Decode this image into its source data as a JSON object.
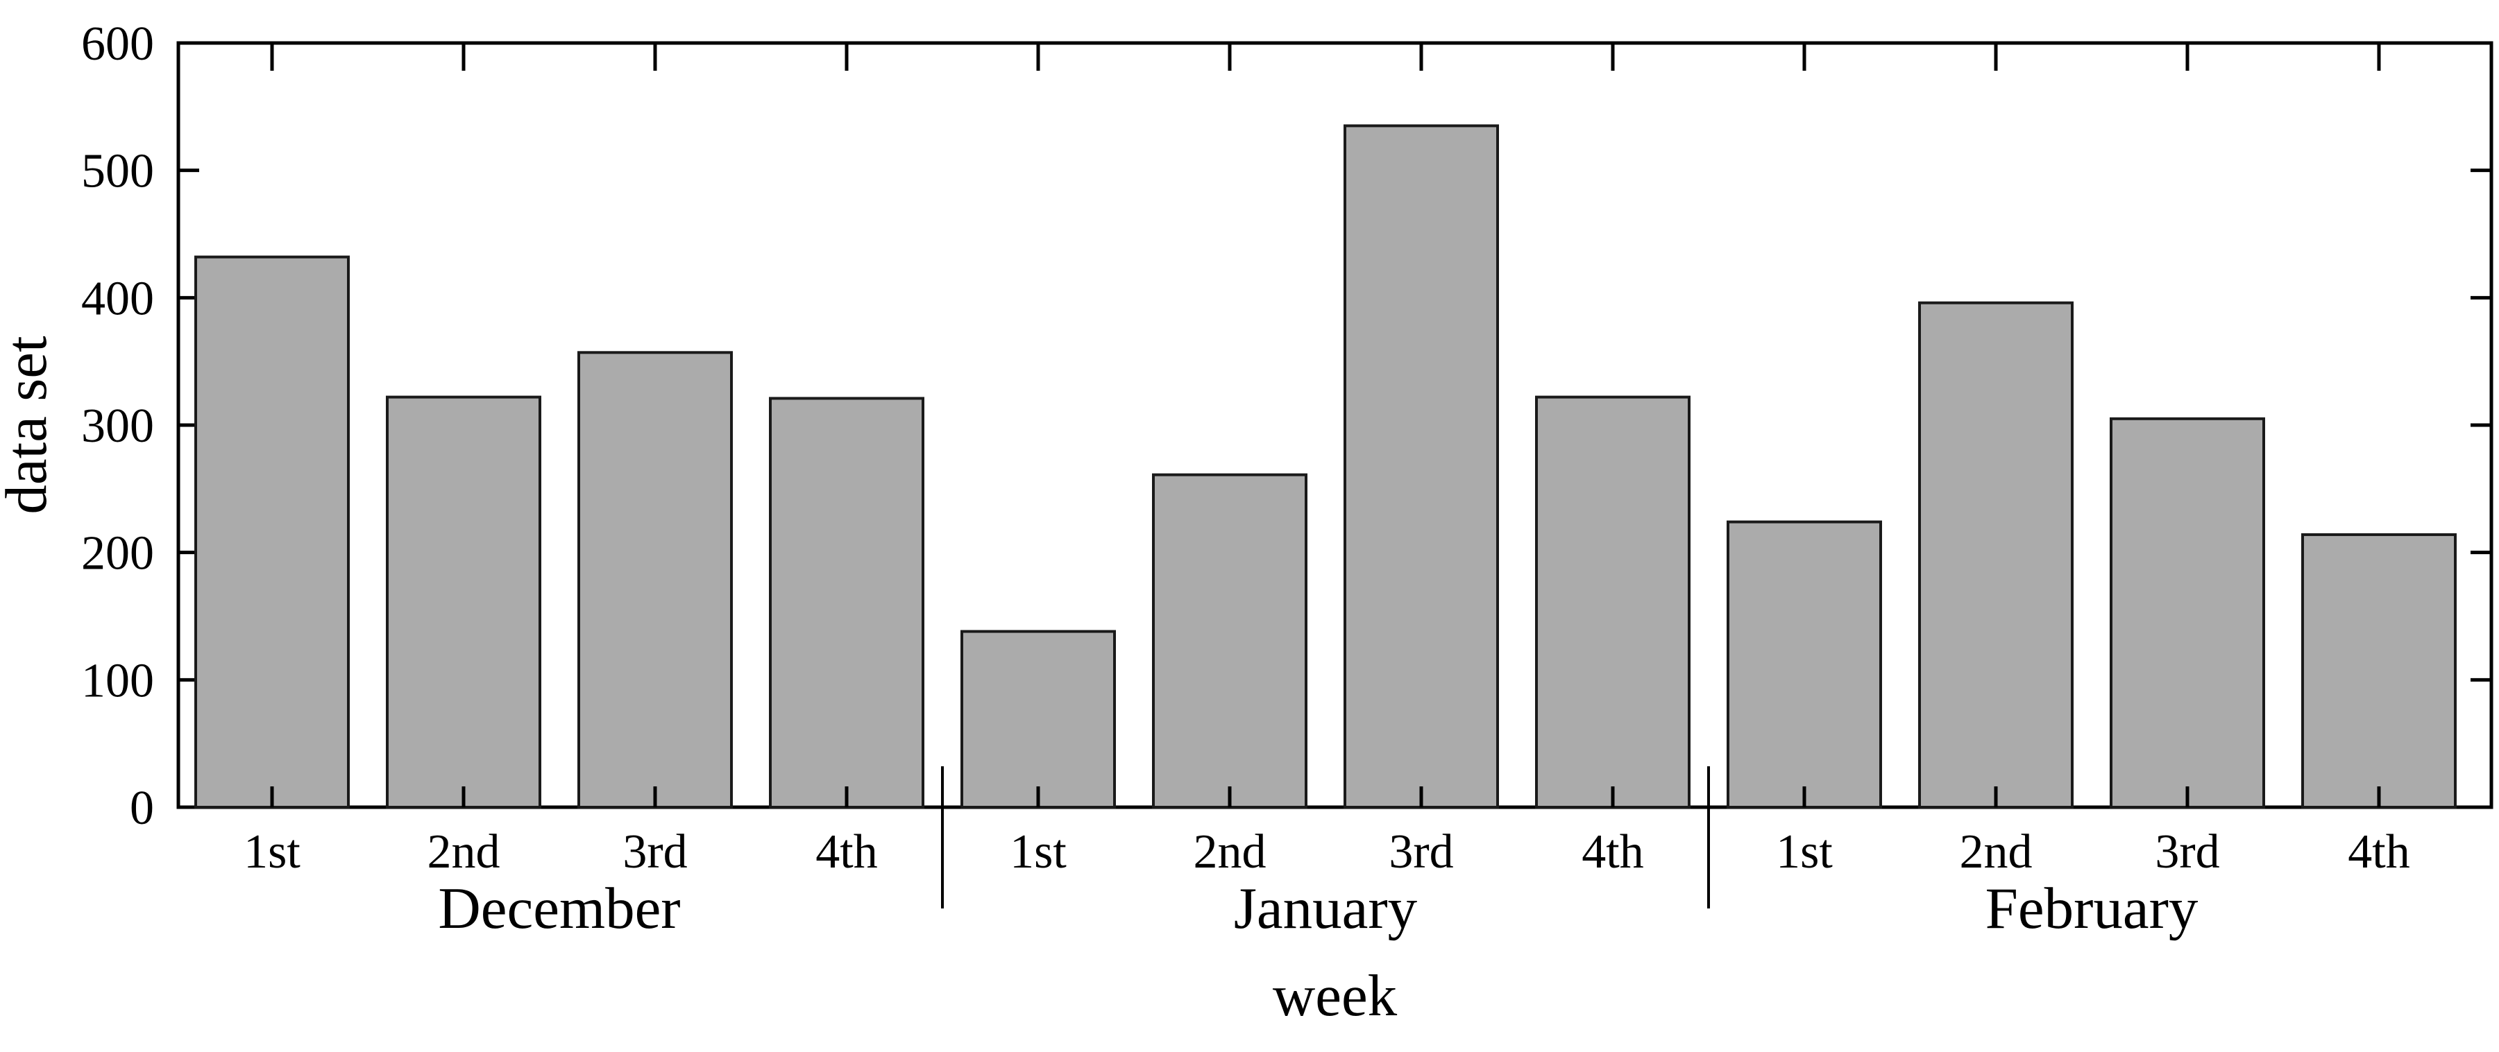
{
  "page": {
    "background": "#FFFFFF"
  },
  "chart_data": {
    "type": "bar",
    "title": "",
    "xlabel": "week",
    "ylabel": "data set",
    "ylim": [
      0,
      600
    ],
    "ytick_interval": 100,
    "ytick_labels": [
      "0",
      "100",
      "200",
      "300",
      "400",
      "500",
      "600"
    ],
    "grid": false,
    "legend": false,
    "background": "#FFFFFF",
    "bar_fill": "#ABABAB",
    "bar_border": "#1A1A1A",
    "axis_color": "#000000",
    "categories": [
      "1st",
      "2nd",
      "3rd",
      "4th",
      "1st",
      "2nd",
      "3rd",
      "4th",
      "1st",
      "2nd",
      "3rd",
      "4th"
    ],
    "values": [
      432,
      322,
      357,
      321,
      138,
      261,
      535,
      322,
      224,
      396,
      305,
      214
    ],
    "groups": [
      {
        "label": "December",
        "weeks": [
          "1st",
          "2nd",
          "3rd",
          "4th"
        ],
        "values": [
          432,
          322,
          357,
          321
        ]
      },
      {
        "label": "January",
        "weeks": [
          "1st",
          "2nd",
          "3rd",
          "4th"
        ],
        "values": [
          138,
          261,
          535,
          322
        ]
      },
      {
        "label": "February",
        "weeks": [
          "1st",
          "2nd",
          "3rd",
          "4th"
        ],
        "values": [
          224,
          396,
          305,
          214
        ]
      }
    ]
  }
}
